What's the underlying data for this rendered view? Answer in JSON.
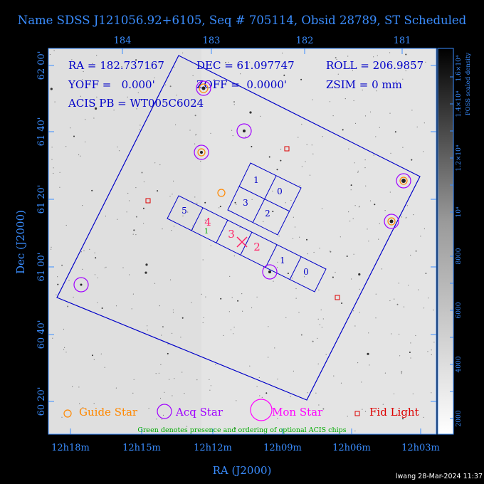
{
  "title": "Name SDSS J121056.92+6105, Seq # 705114, Obsid 28789, ST Scheduled",
  "header": {
    "ra_line": "RA = 182.737167",
    "dec_line": "DEC = 61.097747",
    "roll_line": "ROLL = 206.9857",
    "yoff_line": "YOFF =   0.000'",
    "zoff_line": "ZOFF =  0.0000'",
    "zsim_line": "ZSIM = 0 mm",
    "acis_line": "ACIS PB = WT005C6024"
  },
  "axes": {
    "xlabel": "RA (J2000)",
    "ylabel": "Dec (J2000)",
    "top_ticks": [
      "184",
      "183",
      "182",
      "181"
    ],
    "bottom_ticks": [
      "12h18m",
      "12h15m",
      "12h12m",
      "12h09m",
      "12h06m",
      "12h03m"
    ],
    "left_ticks": [
      "62 00'",
      "61 40'",
      "61 20'",
      "61 00'",
      "60 40'",
      "60 20'"
    ]
  },
  "colorbar": {
    "title": "POSS scaled density",
    "ticks": [
      "2000",
      "4000",
      "6000",
      "8000",
      "10⁴",
      "1.2×10⁴",
      "1.4×10⁴",
      "1.6×10⁴"
    ]
  },
  "chips": {
    "imaging": [
      "1",
      "0",
      "3",
      "2"
    ],
    "spectroscopy": [
      "5",
      "4",
      "3",
      "2",
      "1",
      "0"
    ],
    "optional_marks": [
      "1"
    ]
  },
  "legend": {
    "guide": "Guide Star",
    "acq": "Acq Star",
    "mon": "Mon Star",
    "fid": "Fid Light",
    "note": "Green denotes presence and ordering of optional ACIS chips"
  },
  "colors": {
    "guide": "#ff8800",
    "acq": "#a000ff",
    "mon": "#ff00ff",
    "fid": "#dd0000",
    "footprint": "#0000c8",
    "axis_text": "#3a8dff",
    "optional": "#00aa00"
  },
  "footer": "lwang 28-Mar-2024 11:37"
}
